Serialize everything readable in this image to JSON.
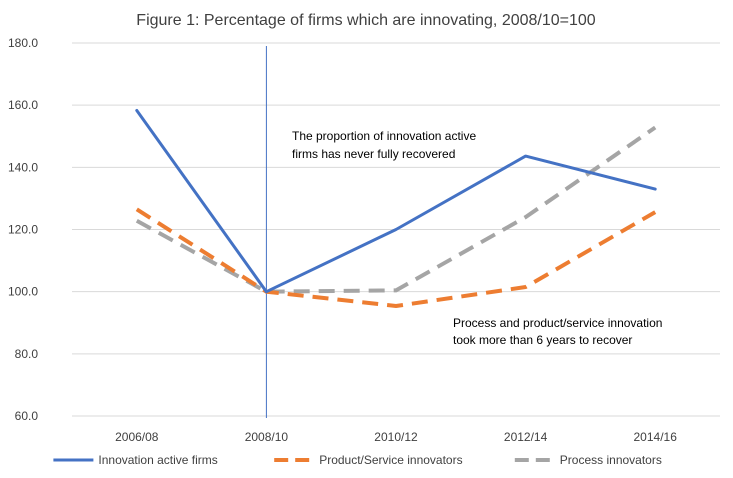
{
  "chart_data": {
    "type": "line",
    "title": "Figure 1: Percentage of firms which are innovating, 2008/10=100",
    "xlabel": "",
    "ylabel": "",
    "categories": [
      "2006/08",
      "2008/10",
      "2010/12",
      "2012/14",
      "2014/16"
    ],
    "ylim": [
      60,
      180
    ],
    "yticks": [
      "60.0",
      "80.0",
      "100.0",
      "120.0",
      "140.0",
      "160.0",
      "180.0"
    ],
    "grid": true,
    "legend_position": "bottom",
    "series": [
      {
        "name": "Innovation active firms",
        "color": "#4472C4",
        "dash": "solid",
        "values": [
          158.3,
          100.0,
          120.0,
          143.6,
          133.0
        ]
      },
      {
        "name": "Product/Service innovators",
        "color": "#ED7D31",
        "dash": "dashed",
        "values": [
          126.5,
          100.0,
          95.4,
          101.5,
          125.6
        ]
      },
      {
        "name": "Process innovators",
        "color": "#A5A5A5",
        "dash": "dashed",
        "values": [
          122.8,
          100.0,
          100.4,
          124.0,
          152.8
        ]
      }
    ],
    "vertical_marker": {
      "category": "2008/10",
      "color": "#4472C4"
    },
    "annotations": [
      {
        "lines": [
          "The proportion of innovation active",
          "firms has never fully recovered"
        ]
      },
      {
        "lines": [
          "Process and product/service innovation",
          "took more than 6 years to recover"
        ]
      }
    ]
  }
}
